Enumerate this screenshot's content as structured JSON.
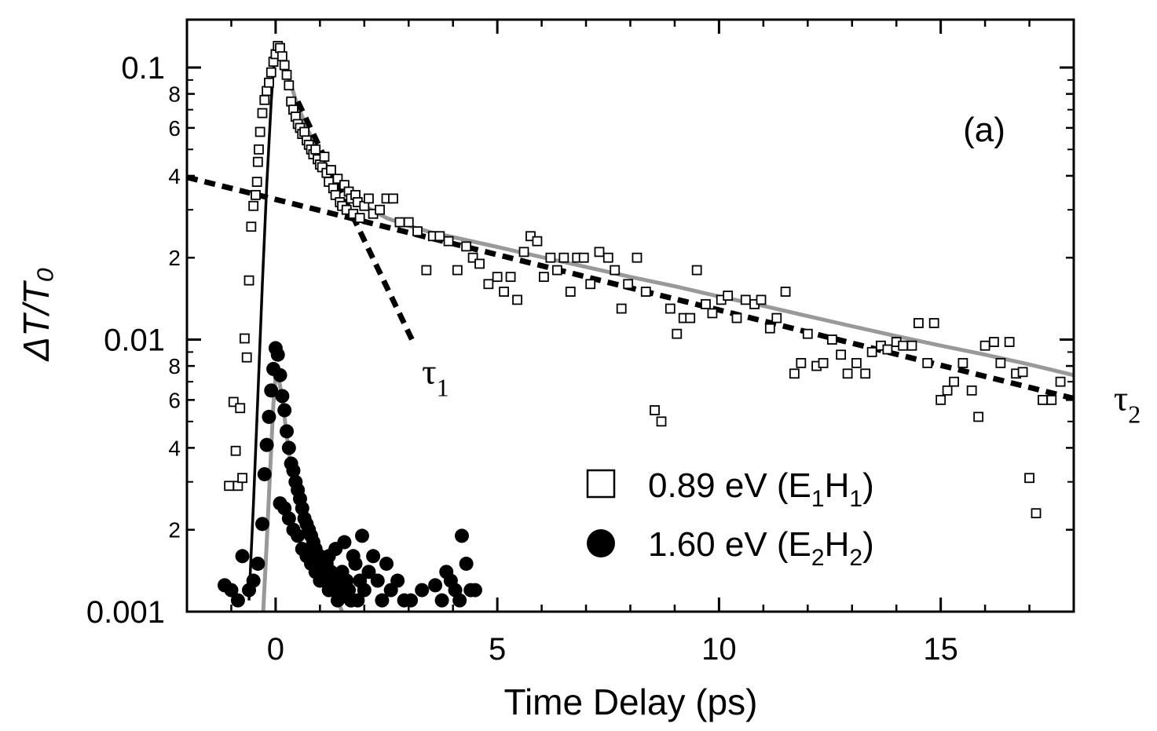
{
  "chart_data": {
    "type": "scatter",
    "panel_label": "(a)",
    "xlabel": "Time Delay (ps)",
    "ylabel": "ΔT/T₀",
    "xlim": [
      -2,
      18
    ],
    "ylim": [
      0.001,
      0.15
    ],
    "yscale": "log",
    "grid": false,
    "legend_position": "bottom-right",
    "x_ticks": [
      0,
      5,
      10,
      15
    ],
    "x_tick_labels": [
      "0",
      "5",
      "10",
      "15"
    ],
    "y_major_ticks": [
      0.001,
      0.01,
      0.1
    ],
    "y_major_labels": [
      "0.001",
      "0.01",
      "0.1"
    ],
    "y_minor_ticks": [
      0.002,
      0.004,
      0.006,
      0.008,
      0.02,
      0.04,
      0.06,
      0.08
    ],
    "y_minor_labels": [
      "2",
      "4",
      "6",
      "8",
      "2",
      "4",
      "6",
      "8"
    ],
    "annotations": [
      {
        "text": "τ",
        "sub": "1",
        "x": 3.3,
        "y": 0.0069
      },
      {
        "text": "τ",
        "sub": "2",
        "x": 18.9,
        "y": 0.0055
      }
    ],
    "series": [
      {
        "name": "0.89 eV (E₁H₁)",
        "legend_text": "0.89 eV (E",
        "legend_sub1": "1",
        "legend_mid": "H",
        "legend_sub2": "1",
        "legend_end": ")",
        "marker": "open-square",
        "x": [
          -1.05,
          -0.95,
          -0.9,
          -0.85,
          -0.8,
          -0.75,
          -0.7,
          -0.65,
          -0.6,
          -0.55,
          -0.5,
          -0.45,
          -0.42,
          -0.4,
          -0.38,
          -0.35,
          -0.3,
          -0.25,
          -0.2,
          -0.15,
          -0.1,
          -0.05,
          0,
          0.05,
          0.1,
          0.15,
          0.2,
          0.25,
          0.3,
          0.35,
          0.4,
          0.45,
          0.5,
          0.55,
          0.6,
          0.65,
          0.7,
          0.75,
          0.8,
          0.85,
          0.9,
          0.95,
          1.0,
          1.05,
          1.1,
          1.15,
          1.2,
          1.25,
          1.3,
          1.35,
          1.4,
          1.45,
          1.5,
          1.55,
          1.6,
          1.65,
          1.7,
          1.75,
          1.8,
          1.85,
          1.9,
          2.0,
          2.1,
          2.2,
          2.35,
          2.5,
          2.65,
          2.8,
          3.0,
          3.2,
          3.4,
          3.55,
          3.7,
          3.9,
          4.1,
          4.3,
          4.45,
          4.6,
          4.8,
          5.0,
          5.15,
          5.3,
          5.45,
          5.6,
          5.75,
          5.9,
          6.05,
          6.2,
          6.35,
          6.5,
          6.65,
          6.8,
          6.95,
          7.1,
          7.3,
          7.5,
          7.65,
          7.8,
          7.95,
          8.15,
          8.35,
          8.55,
          8.7,
          8.9,
          9.05,
          9.2,
          9.35,
          9.5,
          9.7,
          9.85,
          10.05,
          10.2,
          10.4,
          10.6,
          10.8,
          10.95,
          11.15,
          11.3,
          11.5,
          11.7,
          11.85,
          12.0,
          12.2,
          12.35,
          12.55,
          12.75,
          12.9,
          13.1,
          13.3,
          13.45,
          13.65,
          13.8,
          14.0,
          14.15,
          14.35,
          14.5,
          14.7,
          14.85,
          15.0,
          15.15,
          15.3,
          15.5,
          15.7,
          15.85,
          16.0,
          16.2,
          16.35,
          16.55,
          16.7,
          16.85,
          17.0,
          17.15,
          17.3,
          17.5,
          17.7
        ],
        "y": [
          0.0029,
          0.0059,
          0.0039,
          0.0029,
          0.0056,
          0.0031,
          0.0101,
          0.0086,
          0.0165,
          0.026,
          0.031,
          0.034,
          0.038,
          0.045,
          0.05,
          0.058,
          0.068,
          0.076,
          0.082,
          0.088,
          0.096,
          0.105,
          0.112,
          0.12,
          0.118,
          0.11,
          0.102,
          0.094,
          0.086,
          0.075,
          0.07,
          0.066,
          0.062,
          0.06,
          0.057,
          0.058,
          0.054,
          0.052,
          0.05,
          0.048,
          0.05,
          0.046,
          0.044,
          0.043,
          0.047,
          0.041,
          0.038,
          0.042,
          0.036,
          0.034,
          0.039,
          0.032,
          0.031,
          0.037,
          0.03,
          0.035,
          0.033,
          0.029,
          0.034,
          0.032,
          0.028,
          0.031,
          0.033,
          0.029,
          0.03,
          0.033,
          0.033,
          0.027,
          0.027,
          0.025,
          0.018,
          0.024,
          0.024,
          0.023,
          0.018,
          0.022,
          0.02,
          0.019,
          0.016,
          0.017,
          0.015,
          0.017,
          0.014,
          0.021,
          0.024,
          0.023,
          0.017,
          0.02,
          0.018,
          0.02,
          0.015,
          0.02,
          0.02,
          0.016,
          0.021,
          0.02,
          0.018,
          0.013,
          0.016,
          0.02,
          0.015,
          0.0055,
          0.005,
          0.013,
          0.0105,
          0.012,
          0.012,
          0.018,
          0.0135,
          0.0125,
          0.014,
          0.0145,
          0.012,
          0.014,
          0.0135,
          0.014,
          0.011,
          0.012,
          0.015,
          0.0075,
          0.0082,
          0.0105,
          0.008,
          0.0082,
          0.01,
          0.0088,
          0.0075,
          0.0082,
          0.0075,
          0.009,
          0.0095,
          0.0092,
          0.0098,
          0.0095,
          0.0095,
          0.0115,
          0.0082,
          0.0115,
          0.006,
          0.0065,
          0.007,
          0.0082,
          0.0065,
          0.0052,
          0.0095,
          0.0098,
          0.0082,
          0.0098,
          0.0075,
          0.0076,
          0.0031,
          0.0023,
          0.006,
          0.006,
          0.007
        ]
      },
      {
        "name": "1.60 eV (E₂H₂)",
        "legend_text": "1.60 eV (E",
        "legend_sub1": "2",
        "legend_mid": "H",
        "legend_sub2": "2",
        "legend_end": ")",
        "marker": "filled-circle",
        "x": [
          -1.15,
          -1.0,
          -0.85,
          -0.75,
          -0.6,
          -0.5,
          -0.4,
          -0.3,
          -0.25,
          -0.2,
          -0.15,
          -0.1,
          -0.05,
          0,
          0.05,
          0.1,
          0.15,
          0.2,
          0.25,
          0.3,
          0.35,
          0.4,
          0.45,
          0.5,
          0.55,
          0.6,
          0.65,
          0.7,
          0.75,
          0.8,
          0.85,
          0.9,
          0.95,
          1.0,
          1.05,
          1.1,
          1.15,
          1.2,
          1.25,
          1.3,
          1.35,
          1.4,
          1.45,
          1.5,
          1.55,
          1.6,
          1.65,
          1.7,
          1.75,
          1.8,
          1.85,
          1.9,
          1.95,
          2.0,
          2.1,
          2.2,
          2.3,
          2.4,
          2.5,
          2.6,
          2.75,
          2.9,
          3.05,
          3.3,
          3.6,
          3.75,
          3.85,
          3.95,
          4.05,
          4.15,
          4.2,
          4.3,
          4.4,
          4.5,
          0.1,
          0.3,
          0.5,
          0.7,
          0.9,
          1.1,
          1.3,
          1.5,
          1.7,
          0.2,
          0.4,
          0.6,
          0.8,
          1.0,
          1.2,
          1.4
        ],
        "y": [
          0.00125,
          0.0012,
          0.0011,
          0.0016,
          0.0012,
          0.0013,
          0.0015,
          0.0021,
          0.0032,
          0.0041,
          0.0052,
          0.0065,
          0.0078,
          0.0093,
          0.0088,
          0.0074,
          0.0062,
          0.0055,
          0.0046,
          0.004,
          0.0035,
          0.0033,
          0.003,
          0.0028,
          0.0026,
          0.0024,
          0.0022,
          0.0021,
          0.002,
          0.0019,
          0.0018,
          0.0017,
          0.0016,
          0.0016,
          0.0015,
          0.0014,
          0.0015,
          0.0016,
          0.0014,
          0.0013,
          0.0017,
          0.0013,
          0.0012,
          0.0014,
          0.0018,
          0.0013,
          0.0012,
          0.0011,
          0.0016,
          0.0015,
          0.0011,
          0.0013,
          0.0019,
          0.0012,
          0.0014,
          0.0016,
          0.0013,
          0.0011,
          0.0015,
          0.0012,
          0.0013,
          0.0011,
          0.0011,
          0.0012,
          0.00125,
          0.0011,
          0.0014,
          0.0013,
          0.0012,
          0.0011,
          0.0019,
          0.0015,
          0.0012,
          0.0012,
          0.0025,
          0.0022,
          0.0019,
          0.0016,
          0.0014,
          0.0013,
          0.0012,
          0.00115,
          0.0011,
          0.0024,
          0.002,
          0.0017,
          0.0015,
          0.0013,
          0.0012,
          0.0011
        ]
      }
    ],
    "fit_lines": [
      {
        "role": "fit-E1H1-solid-black",
        "color": "#000000",
        "x": [
          -0.6,
          -0.5,
          -0.4,
          -0.3,
          -0.2,
          -0.1,
          -0.05,
          0.0,
          0.05
        ],
        "y": [
          0.0011,
          0.0025,
          0.0062,
          0.016,
          0.037,
          0.075,
          0.098,
          0.115,
          0.12
        ]
      },
      {
        "role": "fit-E1H1-gray-biexponential",
        "color": "#999999",
        "x": [
          0.25,
          0.5,
          0.75,
          1.0,
          1.25,
          1.5,
          1.75,
          2.0,
          2.5,
          3.0,
          3.5,
          4,
          5,
          6,
          7,
          8,
          9,
          10,
          11,
          12,
          13,
          14,
          15,
          16,
          17,
          18
        ],
        "y": [
          0.097,
          0.072,
          0.058,
          0.048,
          0.041,
          0.036,
          0.033,
          0.031,
          0.028,
          0.0262,
          0.0248,
          0.0238,
          0.0219,
          0.0201,
          0.0185,
          0.017,
          0.0157,
          0.0144,
          0.0133,
          0.0122,
          0.0112,
          0.0103,
          0.0095,
          0.0088,
          0.0081,
          0.0074
        ]
      },
      {
        "role": "tau1-dashed",
        "color": "#000000",
        "x": [
          0.5,
          3.1
        ],
        "y": [
          0.075,
          0.0098
        ]
      },
      {
        "role": "tau2-dashed",
        "color": "#000000",
        "x": [
          -2,
          18.5
        ],
        "y": [
          0.0395,
          0.0058
        ]
      },
      {
        "role": "fit-E2H2-gray",
        "color": "#999999",
        "x": [
          -0.28,
          -0.2,
          -0.1,
          -0.05,
          0.0,
          0.05,
          0.1,
          0.15,
          0.2,
          0.3,
          0.5,
          0.7,
          0.9,
          1.1,
          1.3,
          1.5
        ],
        "y": [
          0.001,
          0.0018,
          0.004,
          0.0058,
          0.0073,
          0.0074,
          0.0068,
          0.006,
          0.0052,
          0.0038,
          0.0027,
          0.0021,
          0.0017,
          0.0014,
          0.0012,
          0.001
        ]
      }
    ]
  }
}
